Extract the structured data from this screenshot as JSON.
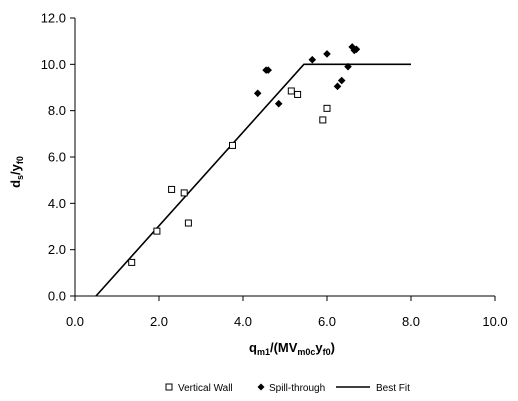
{
  "chart_data": {
    "type": "scatter",
    "xlim": [
      0,
      10
    ],
    "ylim": [
      0,
      12
    ],
    "xticks": [
      "0.0",
      "2.0",
      "4.0",
      "6.0",
      "8.0",
      "10.0"
    ],
    "yticks": [
      "0.0",
      "2.0",
      "4.0",
      "6.0",
      "8.0",
      "10.0",
      "12.0"
    ],
    "xlabel": {
      "main": "q",
      "sub1": "m1",
      "mid": "/(MV",
      "sub2": "m0c",
      "mid2": "y",
      "sub3": "f0",
      "end": ")"
    },
    "ylabel": {
      "main": "d",
      "sub1": "s",
      "mid": "/y",
      "sub2": "f0"
    },
    "grid": false,
    "legend_position": "bottom",
    "series": [
      {
        "name": "Vertical Wall",
        "marker": "open-square",
        "points": [
          [
            1.35,
            1.45
          ],
          [
            1.95,
            2.8
          ],
          [
            2.3,
            4.6
          ],
          [
            2.6,
            4.45
          ],
          [
            2.7,
            3.15
          ],
          [
            3.75,
            6.5
          ],
          [
            5.15,
            8.85
          ],
          [
            5.3,
            8.7
          ],
          [
            5.9,
            7.6
          ],
          [
            6.0,
            8.1
          ]
        ]
      },
      {
        "name": "Spill-through",
        "marker": "filled-diamond",
        "points": [
          [
            4.35,
            8.75
          ],
          [
            4.55,
            9.75
          ],
          [
            4.6,
            9.75
          ],
          [
            4.85,
            8.3
          ],
          [
            5.65,
            10.2
          ],
          [
            6.0,
            10.45
          ],
          [
            6.25,
            9.05
          ],
          [
            6.35,
            9.3
          ],
          [
            6.5,
            9.9
          ],
          [
            6.6,
            10.75
          ],
          [
            6.65,
            10.6
          ],
          [
            6.7,
            10.65
          ]
        ]
      },
      {
        "name": "Best Fit",
        "line": "solid",
        "points": [
          [
            0.5,
            0
          ],
          [
            5.45,
            10.0
          ],
          [
            8.0,
            10.0
          ]
        ]
      }
    ]
  }
}
